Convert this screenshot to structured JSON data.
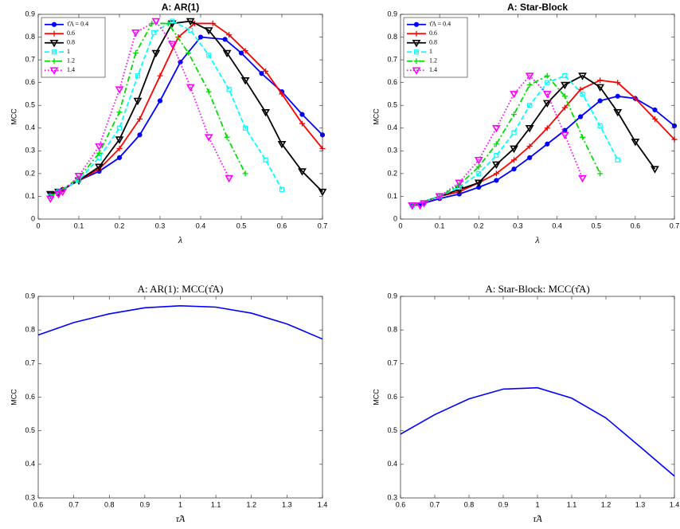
{
  "chart_data": [
    {
      "type": "line",
      "title": "A: AR(1)",
      "x_label": "λ",
      "y_label": "MCC",
      "xlim": [
        0,
        0.7
      ],
      "ylim": [
        0,
        0.9
      ],
      "xticks": [
        0,
        0.1,
        0.2,
        0.3,
        0.4,
        0.5,
        0.6,
        0.7
      ],
      "yticks": [
        0,
        0.1,
        0.2,
        0.3,
        0.4,
        0.5,
        0.6,
        0.7,
        0.8,
        0.9
      ],
      "legend": "upper left",
      "grid": false,
      "series": [
        {
          "name": "τ̂A = 0.4",
          "color": "#0000ff",
          "marker": "circle",
          "linestyle": "solid",
          "x": [
            0.03,
            0.05,
            0.06,
            0.1,
            0.15,
            0.2,
            0.25,
            0.3,
            0.35,
            0.4,
            0.46,
            0.5,
            0.55,
            0.6,
            0.65,
            0.7
          ],
          "values": [
            0.11,
            0.12,
            0.13,
            0.17,
            0.21,
            0.27,
            0.37,
            0.52,
            0.69,
            0.8,
            0.79,
            0.73,
            0.64,
            0.56,
            0.46,
            0.37
          ]
        },
        {
          "name": "0.6",
          "color": "#ff0000",
          "marker": "plus",
          "linestyle": "solid",
          "x": [
            0.03,
            0.05,
            0.06,
            0.1,
            0.15,
            0.2,
            0.25,
            0.3,
            0.345,
            0.385,
            0.43,
            0.47,
            0.51,
            0.56,
            0.6,
            0.65,
            0.7
          ],
          "values": [
            0.11,
            0.12,
            0.13,
            0.17,
            0.22,
            0.31,
            0.44,
            0.63,
            0.8,
            0.86,
            0.86,
            0.81,
            0.74,
            0.65,
            0.55,
            0.42,
            0.31
          ]
        },
        {
          "name": "0.8",
          "color": "#000000",
          "marker": "triangle",
          "linestyle": "solid",
          "x": [
            0.03,
            0.05,
            0.1,
            0.15,
            0.2,
            0.245,
            0.29,
            0.33,
            0.375,
            0.42,
            0.465,
            0.51,
            0.56,
            0.6,
            0.65,
            0.7
          ],
          "values": [
            0.11,
            0.12,
            0.17,
            0.23,
            0.35,
            0.52,
            0.73,
            0.86,
            0.87,
            0.83,
            0.73,
            0.61,
            0.47,
            0.33,
            0.21,
            0.12
          ]
        },
        {
          "name": "1",
          "color": "#00ffff",
          "marker": "square",
          "linestyle": "dashed",
          "x": [
            0.03,
            0.05,
            0.1,
            0.15,
            0.2,
            0.245,
            0.285,
            0.33,
            0.375,
            0.42,
            0.47,
            0.51,
            0.56,
            0.6
          ],
          "values": [
            0.1,
            0.12,
            0.17,
            0.27,
            0.4,
            0.63,
            0.82,
            0.87,
            0.83,
            0.72,
            0.57,
            0.4,
            0.26,
            0.13
          ]
        },
        {
          "name": "1.2",
          "color": "#00dd00",
          "marker": "plus",
          "linestyle": "dashdot",
          "x": [
            0.03,
            0.05,
            0.1,
            0.15,
            0.2,
            0.24,
            0.28,
            0.32,
            0.37,
            0.42,
            0.465,
            0.51
          ],
          "values": [
            0.1,
            0.12,
            0.18,
            0.29,
            0.47,
            0.73,
            0.86,
            0.86,
            0.73,
            0.56,
            0.36,
            0.2
          ]
        },
        {
          "name": "1.4",
          "color": "#ff00ff",
          "marker": "triangle",
          "linestyle": "dotted",
          "x": [
            0.03,
            0.05,
            0.06,
            0.1,
            0.15,
            0.2,
            0.24,
            0.29,
            0.33,
            0.375,
            0.42,
            0.47
          ],
          "values": [
            0.09,
            0.11,
            0.12,
            0.19,
            0.32,
            0.57,
            0.82,
            0.87,
            0.77,
            0.58,
            0.36,
            0.18
          ]
        }
      ]
    },
    {
      "type": "line",
      "title": "A: Star-Block",
      "x_label": "λ",
      "y_label": "MCC",
      "xlim": [
        0,
        0.7
      ],
      "ylim": [
        0,
        0.9
      ],
      "xticks": [
        0,
        0.1,
        0.2,
        0.3,
        0.4,
        0.5,
        0.6,
        0.7
      ],
      "yticks": [
        0,
        0.1,
        0.2,
        0.3,
        0.4,
        0.5,
        0.6,
        0.7,
        0.8,
        0.9
      ],
      "legend": "upper left",
      "grid": false,
      "series": [
        {
          "name": "τ̂A = 0.4",
          "color": "#0000ff",
          "marker": "circle",
          "linestyle": "solid",
          "x": [
            0.03,
            0.05,
            0.06,
            0.1,
            0.15,
            0.2,
            0.245,
            0.29,
            0.33,
            0.375,
            0.42,
            0.46,
            0.51,
            0.555,
            0.6,
            0.65,
            0.7
          ],
          "values": [
            0.06,
            0.065,
            0.07,
            0.09,
            0.11,
            0.14,
            0.17,
            0.22,
            0.27,
            0.33,
            0.39,
            0.45,
            0.52,
            0.54,
            0.53,
            0.48,
            0.41
          ]
        },
        {
          "name": "0.6",
          "color": "#ff0000",
          "marker": "plus",
          "linestyle": "solid",
          "x": [
            0.03,
            0.1,
            0.15,
            0.2,
            0.245,
            0.29,
            0.33,
            0.375,
            0.42,
            0.46,
            0.51,
            0.555,
            0.6,
            0.65,
            0.7
          ],
          "values": [
            0.06,
            0.1,
            0.12,
            0.16,
            0.2,
            0.26,
            0.32,
            0.4,
            0.49,
            0.57,
            0.61,
            0.6,
            0.53,
            0.44,
            0.35
          ]
        },
        {
          "name": "0.8",
          "color": "#000000",
          "marker": "triangle",
          "linestyle": "solid",
          "x": [
            0.03,
            0.1,
            0.15,
            0.2,
            0.245,
            0.29,
            0.33,
            0.375,
            0.42,
            0.465,
            0.51,
            0.555,
            0.6,
            0.65
          ],
          "values": [
            0.06,
            0.1,
            0.13,
            0.16,
            0.24,
            0.31,
            0.4,
            0.51,
            0.59,
            0.63,
            0.58,
            0.47,
            0.34,
            0.22
          ]
        },
        {
          "name": "1",
          "color": "#00ffff",
          "marker": "square",
          "linestyle": "dashed",
          "x": [
            0.03,
            0.1,
            0.15,
            0.2,
            0.245,
            0.29,
            0.33,
            0.375,
            0.42,
            0.465,
            0.51,
            0.555
          ],
          "values": [
            0.06,
            0.1,
            0.14,
            0.2,
            0.28,
            0.38,
            0.5,
            0.6,
            0.63,
            0.55,
            0.41,
            0.26
          ]
        },
        {
          "name": "1.2",
          "color": "#00dd00",
          "marker": "plus",
          "linestyle": "dashdot",
          "x": [
            0.03,
            0.1,
            0.15,
            0.2,
            0.245,
            0.29,
            0.33,
            0.375,
            0.42,
            0.465,
            0.51
          ],
          "values": [
            0.06,
            0.1,
            0.15,
            0.23,
            0.33,
            0.46,
            0.59,
            0.63,
            0.54,
            0.36,
            0.2
          ]
        },
        {
          "name": "1.4",
          "color": "#ff00ff",
          "marker": "triangle",
          "linestyle": "dotted",
          "x": [
            0.03,
            0.05,
            0.06,
            0.1,
            0.15,
            0.2,
            0.245,
            0.29,
            0.33,
            0.375,
            0.42,
            0.465
          ],
          "values": [
            0.06,
            0.06,
            0.07,
            0.1,
            0.16,
            0.26,
            0.4,
            0.55,
            0.63,
            0.55,
            0.37,
            0.18
          ]
        }
      ]
    },
    {
      "type": "line",
      "title": "A: AR(1): MCC(τ̂A)",
      "x_label": "τ̂A",
      "y_label": "MCC",
      "xlim": [
        0.6,
        1.4
      ],
      "ylim": [
        0.3,
        0.9
      ],
      "xticks": [
        0.6,
        0.7,
        0.8,
        0.9,
        1,
        1.1,
        1.2,
        1.3,
        1.4
      ],
      "yticks": [
        0.3,
        0.4,
        0.5,
        0.6,
        0.7,
        0.8,
        0.9
      ],
      "grid": false,
      "x": [
        0.6,
        0.7,
        0.8,
        0.9,
        1,
        1.1,
        1.2,
        1.3,
        1.4
      ],
      "series": [
        {
          "color": "#0000ff",
          "linestyle": "solid",
          "values": [
            0.785,
            0.822,
            0.848,
            0.866,
            0.872,
            0.868,
            0.85,
            0.818,
            0.773
          ]
        }
      ]
    },
    {
      "type": "line",
      "title": "A: Star-Block: MCC(τ̂A)",
      "x_label": "τ̂A",
      "y_label": "MCC",
      "xlim": [
        0.6,
        1.4
      ],
      "ylim": [
        0.3,
        0.9
      ],
      "xticks": [
        0.6,
        0.7,
        0.8,
        0.9,
        1,
        1.1,
        1.2,
        1.3,
        1.4
      ],
      "yticks": [
        0.3,
        0.4,
        0.5,
        0.6,
        0.7,
        0.8,
        0.9
      ],
      "grid": false,
      "x": [
        0.6,
        0.7,
        0.8,
        0.9,
        1,
        1.1,
        1.2,
        1.3,
        1.4
      ],
      "series": [
        {
          "color": "#0000ff",
          "linestyle": "solid",
          "values": [
            0.49,
            0.548,
            0.595,
            0.624,
            0.628,
            0.597,
            0.538,
            0.452,
            0.365
          ]
        }
      ]
    }
  ]
}
